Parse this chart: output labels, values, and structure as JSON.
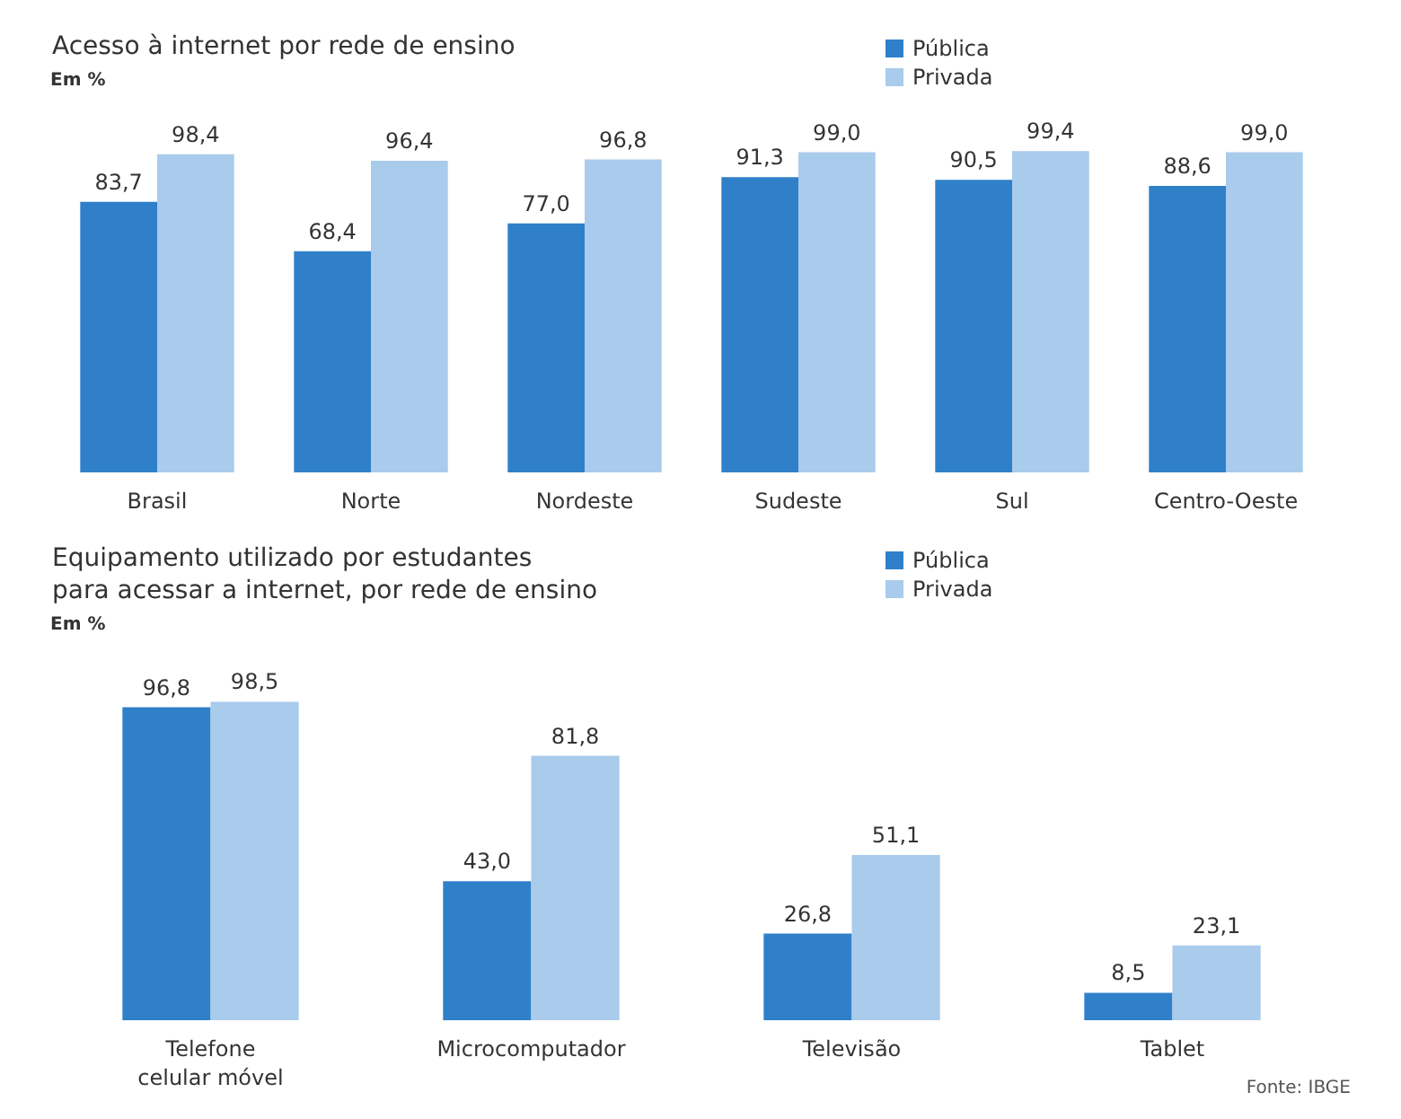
{
  "chart_data": [
    {
      "type": "bar",
      "title": "Acesso à internet por rede de ensino",
      "subtitle": "Em %",
      "categories": [
        "Brasil",
        "Norte",
        "Nordeste",
        "Sudeste",
        "Sul",
        "Centro-Oeste"
      ],
      "legend": "top right",
      "series": [
        {
          "name": "Pública",
          "color": "#2f80c9",
          "values": [
            83.7,
            68.4,
            77.0,
            91.3,
            90.5,
            88.6
          ],
          "value_labels": [
            "83,7",
            "68,4",
            "77,0",
            "91,3",
            "90,5",
            "88,6"
          ]
        },
        {
          "name": "Privada",
          "color": "#a9cbec",
          "values": [
            98.4,
            96.4,
            96.8,
            99.0,
            99.4,
            99.0
          ],
          "value_labels": [
            "98,4",
            "96,4",
            "96,8",
            "99,0",
            "99,4",
            "99,0"
          ]
        }
      ]
    },
    {
      "type": "bar",
      "title": "Equipamento utilizado por estudantes\npara acessar a internet, por rede de ensino",
      "subtitle": "Em %",
      "categories": [
        "Telefone\ncelular móvel",
        "Microcomputador",
        "Televisão",
        "Tablet"
      ],
      "legend": "top right",
      "annotations": [
        "Fonte: IBGE"
      ],
      "series": [
        {
          "name": "Pública",
          "color": "#2f80c9",
          "values": [
            96.8,
            43.0,
            26.8,
            8.5
          ],
          "value_labels": [
            "96,8",
            "43,0",
            "26,8",
            "8,5"
          ]
        },
        {
          "name": "Privada",
          "color": "#a9cbec",
          "values": [
            98.5,
            81.8,
            51.1,
            23.1
          ],
          "value_labels": [
            "98,5",
            "81,8",
            "51,1",
            "23,1"
          ]
        }
      ]
    }
  ]
}
